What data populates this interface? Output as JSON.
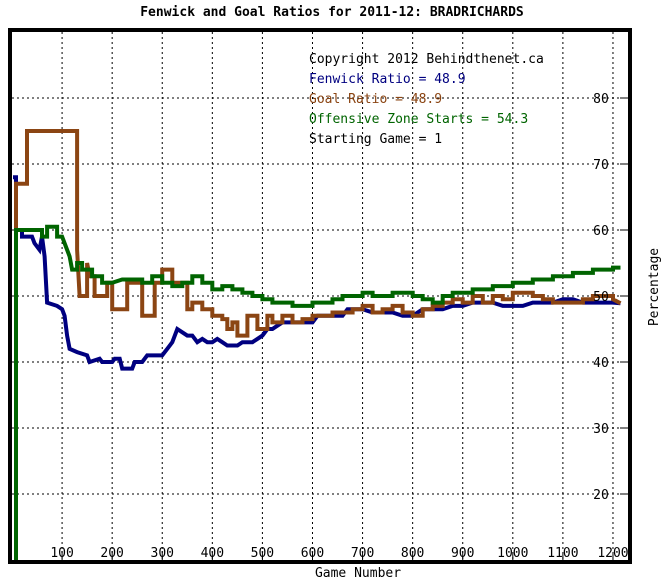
{
  "chart_data": {
    "type": "line",
    "title": "Fenwick and Goal Ratios for 2011-12: BRADRICHARDS",
    "xlabel": "Game Number",
    "ylabel": "Percentage",
    "xlim": [
      0,
      1230
    ],
    "ylim": [
      10,
      90
    ],
    "xticks": [
      "100",
      "200",
      "300",
      "400",
      "500",
      "600",
      "700",
      "800",
      "900",
      "1000",
      "1100",
      "1200"
    ],
    "yticks": [
      "20",
      "30",
      "40",
      "50",
      "60",
      "70",
      "80"
    ],
    "grid": true,
    "annotations": [
      {
        "text": "Copyright 2012 Behindthenet.ca",
        "color": "#000000"
      },
      {
        "text": "Fenwick Ratio = 48.9",
        "color": "#000080"
      },
      {
        "text": "Goal Ratio = 48.9",
        "color": "#8B4513"
      },
      {
        "text": "Offensive Zone Starts = 54.3",
        "color": "#006400"
      },
      {
        "text": "Starting Game = 1",
        "color": "#000000"
      }
    ],
    "series": [
      {
        "name": "Fenwick Ratio",
        "color": "#000080",
        "points": [
          [
            2,
            68
          ],
          [
            8,
            68
          ],
          [
            8,
            60
          ],
          [
            20,
            60
          ],
          [
            20,
            59
          ],
          [
            40,
            59
          ],
          [
            45,
            58
          ],
          [
            55,
            57
          ],
          [
            60,
            59
          ],
          [
            65,
            56
          ],
          [
            70,
            49
          ],
          [
            90,
            48.5
          ],
          [
            100,
            48
          ],
          [
            105,
            47
          ],
          [
            110,
            44
          ],
          [
            115,
            42
          ],
          [
            130,
            41.5
          ],
          [
            150,
            41
          ],
          [
            155,
            40
          ],
          [
            175,
            40.5
          ],
          [
            180,
            40
          ],
          [
            200,
            40
          ],
          [
            205,
            40.5
          ],
          [
            215,
            40.5
          ],
          [
            220,
            39
          ],
          [
            240,
            39
          ],
          [
            245,
            40
          ],
          [
            260,
            40
          ],
          [
            265,
            40.5
          ],
          [
            270,
            41
          ],
          [
            290,
            41
          ],
          [
            300,
            41
          ],
          [
            310,
            42
          ],
          [
            320,
            43
          ],
          [
            330,
            45
          ],
          [
            340,
            44.5
          ],
          [
            350,
            44
          ],
          [
            360,
            44
          ],
          [
            370,
            43
          ],
          [
            380,
            43.5
          ],
          [
            390,
            43
          ],
          [
            400,
            43
          ],
          [
            410,
            43.5
          ],
          [
            420,
            43
          ],
          [
            430,
            42.5
          ],
          [
            450,
            42.5
          ],
          [
            460,
            43
          ],
          [
            480,
            43
          ],
          [
            490,
            43.5
          ],
          [
            500,
            44
          ],
          [
            510,
            45
          ],
          [
            520,
            45
          ],
          [
            530,
            45.5
          ],
          [
            540,
            46
          ],
          [
            560,
            46
          ],
          [
            570,
            46
          ],
          [
            580,
            46
          ],
          [
            590,
            46
          ],
          [
            600,
            46
          ],
          [
            610,
            47
          ],
          [
            620,
            47
          ],
          [
            640,
            47
          ],
          [
            660,
            47
          ],
          [
            670,
            48
          ],
          [
            680,
            48
          ],
          [
            700,
            48
          ],
          [
            720,
            47.5
          ],
          [
            740,
            47.5
          ],
          [
            760,
            47.5
          ],
          [
            780,
            47
          ],
          [
            800,
            47
          ],
          [
            820,
            48
          ],
          [
            840,
            48
          ],
          [
            860,
            48
          ],
          [
            880,
            48.5
          ],
          [
            900,
            48.5
          ],
          [
            920,
            49
          ],
          [
            940,
            49
          ],
          [
            960,
            49
          ],
          [
            980,
            48.5
          ],
          [
            1000,
            48.5
          ],
          [
            1020,
            48.5
          ],
          [
            1040,
            49
          ],
          [
            1060,
            49
          ],
          [
            1080,
            49
          ],
          [
            1100,
            49.5
          ],
          [
            1120,
            49.5
          ],
          [
            1140,
            49
          ],
          [
            1160,
            49
          ],
          [
            1180,
            49
          ],
          [
            1200,
            49
          ],
          [
            1215,
            48.9
          ]
        ]
      },
      {
        "name": "Goal Ratio",
        "color": "#8B4513",
        "points": [
          [
            8,
            50
          ],
          [
            8,
            67
          ],
          [
            30,
            67
          ],
          [
            30,
            75
          ],
          [
            130,
            75
          ],
          [
            130,
            57
          ],
          [
            135,
            50
          ],
          [
            150,
            50
          ],
          [
            150,
            55
          ],
          [
            155,
            53
          ],
          [
            165,
            53
          ],
          [
            165,
            50
          ],
          [
            190,
            50
          ],
          [
            190,
            52
          ],
          [
            200,
            52
          ],
          [
            200,
            48
          ],
          [
            230,
            48
          ],
          [
            230,
            52
          ],
          [
            260,
            52
          ],
          [
            260,
            47
          ],
          [
            285,
            47
          ],
          [
            285,
            52
          ],
          [
            300,
            52
          ],
          [
            300,
            54
          ],
          [
            320,
            54
          ],
          [
            320,
            52
          ],
          [
            350,
            52
          ],
          [
            350,
            48
          ],
          [
            360,
            48
          ],
          [
            360,
            49
          ],
          [
            380,
            49
          ],
          [
            380,
            48
          ],
          [
            400,
            48
          ],
          [
            400,
            47
          ],
          [
            420,
            47
          ],
          [
            420,
            46.5
          ],
          [
            430,
            46.5
          ],
          [
            430,
            45
          ],
          [
            440,
            45
          ],
          [
            440,
            46
          ],
          [
            450,
            46
          ],
          [
            450,
            44
          ],
          [
            470,
            44
          ],
          [
            470,
            47
          ],
          [
            490,
            47
          ],
          [
            490,
            45
          ],
          [
            510,
            45
          ],
          [
            510,
            47
          ],
          [
            520,
            47
          ],
          [
            520,
            46
          ],
          [
            540,
            46
          ],
          [
            540,
            47
          ],
          [
            560,
            47
          ],
          [
            560,
            46
          ],
          [
            580,
            46
          ],
          [
            580,
            46.5
          ],
          [
            600,
            46.5
          ],
          [
            600,
            47
          ],
          [
            640,
            47
          ],
          [
            640,
            47.5
          ],
          [
            680,
            47.5
          ],
          [
            680,
            48
          ],
          [
            700,
            48
          ],
          [
            700,
            48.5
          ],
          [
            720,
            48.5
          ],
          [
            720,
            47.5
          ],
          [
            740,
            47.5
          ],
          [
            740,
            48
          ],
          [
            760,
            48
          ],
          [
            760,
            48.5
          ],
          [
            780,
            48.5
          ],
          [
            780,
            47.5
          ],
          [
            800,
            47.5
          ],
          [
            800,
            47
          ],
          [
            820,
            47
          ],
          [
            820,
            48
          ],
          [
            840,
            48
          ],
          [
            840,
            48.5
          ],
          [
            860,
            48.5
          ],
          [
            860,
            49
          ],
          [
            880,
            49
          ],
          [
            880,
            49.5
          ],
          [
            900,
            49.5
          ],
          [
            900,
            49
          ],
          [
            920,
            49
          ],
          [
            920,
            50
          ],
          [
            940,
            50
          ],
          [
            940,
            49
          ],
          [
            960,
            49
          ],
          [
            960,
            50
          ],
          [
            980,
            50
          ],
          [
            980,
            49.5
          ],
          [
            1000,
            49.5
          ],
          [
            1000,
            50.5
          ],
          [
            1040,
            50.5
          ],
          [
            1040,
            50
          ],
          [
            1060,
            50
          ],
          [
            1060,
            49.5
          ],
          [
            1080,
            49.5
          ],
          [
            1080,
            49
          ],
          [
            1140,
            49
          ],
          [
            1140,
            49.5
          ],
          [
            1160,
            49.5
          ],
          [
            1160,
            50
          ],
          [
            1200,
            50
          ],
          [
            1200,
            49.5
          ],
          [
            1215,
            48.9
          ]
        ]
      },
      {
        "name": "Offensive Zone Starts",
        "color": "#006400",
        "points": [
          [
            8,
            10
          ],
          [
            8,
            60
          ],
          [
            60,
            60
          ],
          [
            60,
            59
          ],
          [
            70,
            59
          ],
          [
            70,
            60.5
          ],
          [
            90,
            60.5
          ],
          [
            90,
            59
          ],
          [
            100,
            59
          ],
          [
            105,
            58
          ],
          [
            115,
            56
          ],
          [
            120,
            54
          ],
          [
            130,
            54
          ],
          [
            130,
            55
          ],
          [
            140,
            55
          ],
          [
            140,
            54
          ],
          [
            160,
            54
          ],
          [
            160,
            53
          ],
          [
            180,
            53
          ],
          [
            180,
            52
          ],
          [
            200,
            52
          ],
          [
            220,
            52.5
          ],
          [
            260,
            52.5
          ],
          [
            260,
            52
          ],
          [
            280,
            52
          ],
          [
            280,
            53
          ],
          [
            300,
            53
          ],
          [
            300,
            52
          ],
          [
            320,
            52
          ],
          [
            320,
            51.5
          ],
          [
            340,
            51.5
          ],
          [
            340,
            52
          ],
          [
            360,
            52
          ],
          [
            360,
            53
          ],
          [
            380,
            53
          ],
          [
            380,
            52
          ],
          [
            400,
            52
          ],
          [
            400,
            51
          ],
          [
            420,
            51
          ],
          [
            420,
            51.5
          ],
          [
            440,
            51.5
          ],
          [
            440,
            51
          ],
          [
            460,
            51
          ],
          [
            460,
            50.5
          ],
          [
            480,
            50.5
          ],
          [
            480,
            50
          ],
          [
            500,
            50
          ],
          [
            500,
            49.5
          ],
          [
            520,
            49.5
          ],
          [
            520,
            49
          ],
          [
            560,
            49
          ],
          [
            560,
            48.5
          ],
          [
            600,
            48.5
          ],
          [
            600,
            49
          ],
          [
            640,
            49
          ],
          [
            640,
            49.5
          ],
          [
            660,
            49.5
          ],
          [
            660,
            50
          ],
          [
            700,
            50
          ],
          [
            700,
            50.5
          ],
          [
            720,
            50.5
          ],
          [
            720,
            50
          ],
          [
            760,
            50
          ],
          [
            760,
            50.5
          ],
          [
            800,
            50.5
          ],
          [
            800,
            50
          ],
          [
            820,
            50
          ],
          [
            820,
            49.5
          ],
          [
            840,
            49.5
          ],
          [
            840,
            49
          ],
          [
            860,
            49
          ],
          [
            860,
            50
          ],
          [
            880,
            50
          ],
          [
            880,
            50.5
          ],
          [
            920,
            50.5
          ],
          [
            920,
            51
          ],
          [
            960,
            51
          ],
          [
            960,
            51.5
          ],
          [
            1000,
            51.5
          ],
          [
            1000,
            52
          ],
          [
            1040,
            52
          ],
          [
            1040,
            52.5
          ],
          [
            1080,
            52.5
          ],
          [
            1080,
            53
          ],
          [
            1120,
            53
          ],
          [
            1120,
            53.5
          ],
          [
            1160,
            53.5
          ],
          [
            1160,
            54
          ],
          [
            1200,
            54
          ],
          [
            1200,
            54.3
          ],
          [
            1215,
            54.3
          ]
        ]
      }
    ]
  }
}
